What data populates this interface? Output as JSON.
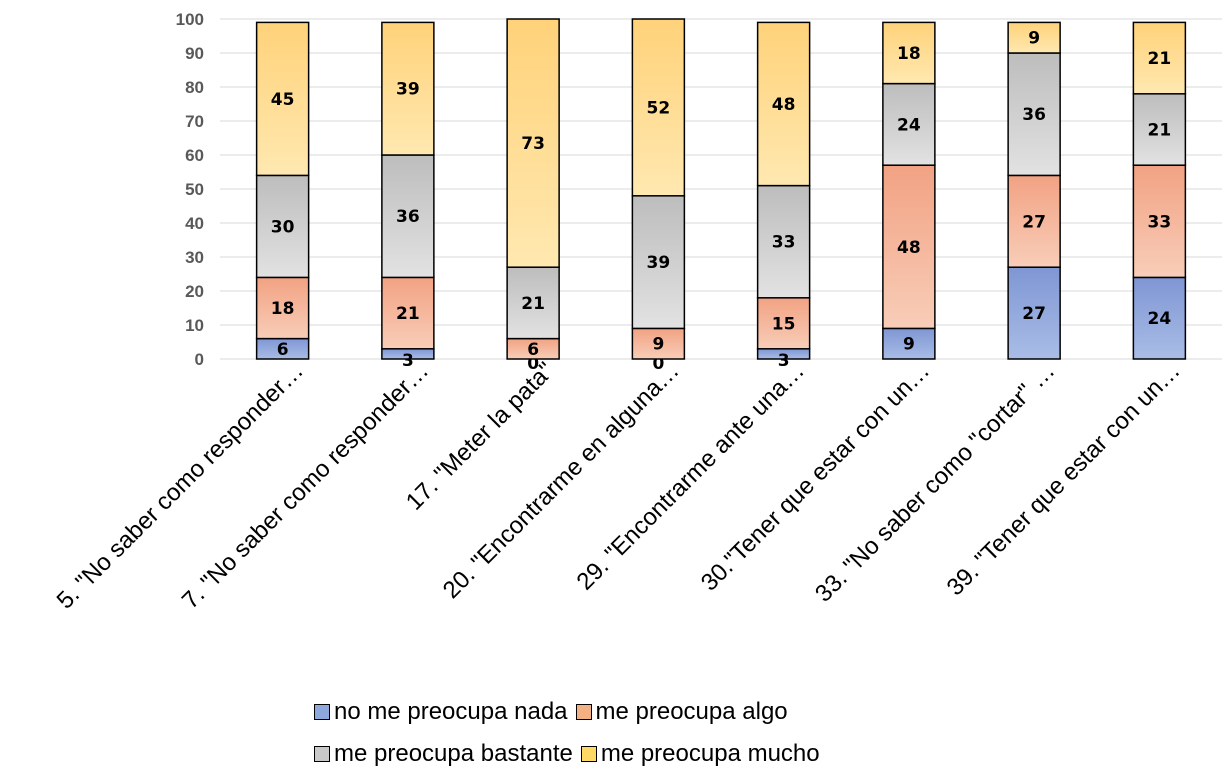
{
  "chart_data": {
    "type": "bar",
    "stacked": true,
    "title": "",
    "xlabel": "",
    "ylabel": "",
    "ylim": [
      0,
      100
    ],
    "yticks": [
      0,
      10,
      20,
      30,
      40,
      50,
      60,
      70,
      80,
      90,
      100
    ],
    "grid": true,
    "legend_position": "bottom",
    "categories": [
      "5. \"No saber como responder…",
      "7. \"No saber como responder…",
      "17.  \"Meter la pata\"",
      "20. \"Encontrarme en alguna…",
      "29. \"Encontrarme ante una…",
      "30.\"Tener que estar con un…",
      "33. \"No saber como \"cortar\" …",
      "39. \"Tener que estar con un…"
    ],
    "series": [
      {
        "name": "no me preocupa nada",
        "color": "#8EA9DB",
        "values": [
          6,
          3,
          0,
          0,
          3,
          9,
          27,
          24
        ]
      },
      {
        "name": "me preocupa algo",
        "color": "#F4B183",
        "values": [
          18,
          21,
          6,
          9,
          15,
          48,
          27,
          33
        ]
      },
      {
        "name": "me preocupa bastante",
        "color": "#C9C9C9",
        "values": [
          30,
          36,
          21,
          39,
          33,
          24,
          36,
          21
        ]
      },
      {
        "name": "me preocupa mucho",
        "color": "#FFD966",
        "values": [
          45,
          39,
          73,
          52,
          48,
          18,
          9,
          21
        ]
      }
    ]
  }
}
